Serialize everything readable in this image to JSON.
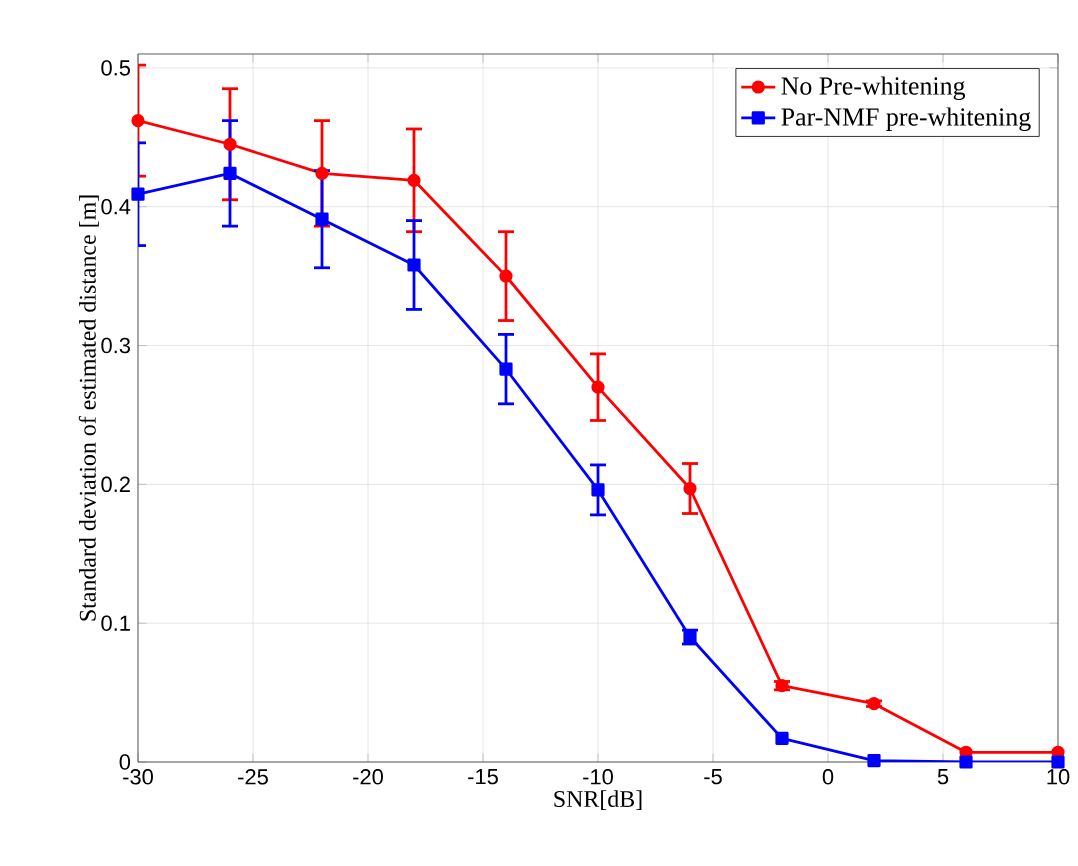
{
  "chart_data": {
    "type": "line",
    "xlabel": "SNR[dB]",
    "ylabel": "Standard deviation of estimated distance [m]",
    "x": [
      -30,
      -26,
      -22,
      -18,
      -14,
      -10,
      -6,
      -2,
      2,
      6,
      10
    ],
    "xlim": [
      -30,
      10
    ],
    "xticks": [
      -30,
      -25,
      -20,
      -15,
      -10,
      -5,
      0,
      5,
      10
    ],
    "ylim": [
      0,
      0.51
    ],
    "yticks": [
      0,
      0.1,
      0.2,
      0.3,
      0.4,
      0.5
    ],
    "grid": true,
    "legend": "top right",
    "line_style": "solid",
    "series": [
      {
        "name": "No Pre-whitening",
        "color": "#ff0000",
        "marker": "circle",
        "values": [
          0.462,
          0.445,
          0.424,
          0.419,
          0.35,
          0.27,
          0.197,
          0.055,
          0.042,
          0.007,
          0.007
        ],
        "errors": [
          0.04,
          0.04,
          0.038,
          0.037,
          0.032,
          0.024,
          0.018,
          0.003,
          0.002,
          null,
          null
        ]
      },
      {
        "name": "Par-NMF pre-whitening",
        "color": "#0000ff",
        "marker": "square",
        "values": [
          0.409,
          0.424,
          0.391,
          0.358,
          0.283,
          0.196,
          0.09,
          0.017,
          0.001,
          0,
          0
        ],
        "errors": [
          0.037,
          0.038,
          0.035,
          0.032,
          0.025,
          0.018,
          0.005,
          null,
          null,
          null,
          null
        ]
      }
    ]
  }
}
